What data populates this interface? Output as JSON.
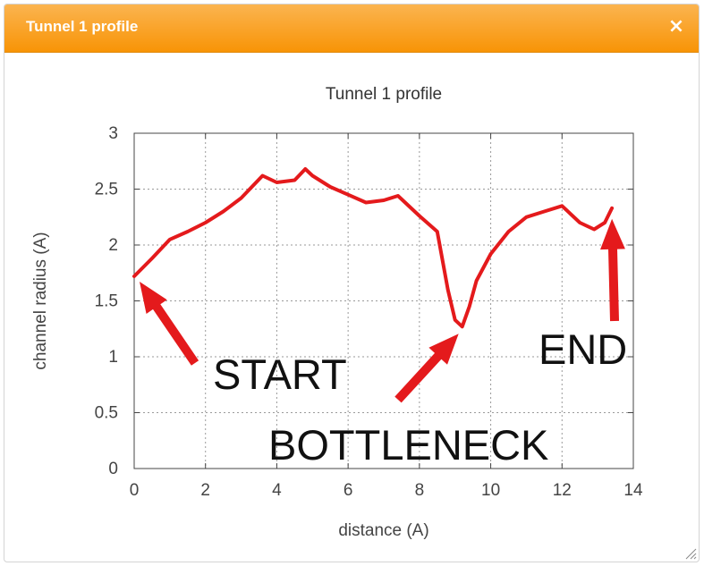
{
  "dialog": {
    "title": "Tunnel 1 profile",
    "close_glyph": "×",
    "close_icon": "close-icon",
    "resize_icon": "resize-grip-icon"
  },
  "chart_data": {
    "type": "line",
    "title": "Tunnel 1 profile",
    "xlabel": "distance (A)",
    "ylabel": "channel radius (A)",
    "xlim": [
      0,
      14
    ],
    "ylim": [
      0,
      3
    ],
    "xticks": [
      0,
      2,
      4,
      6,
      8,
      10,
      12,
      14
    ],
    "yticks": [
      "0",
      "0.5",
      "1",
      "1.5",
      "2",
      "2.5",
      "3"
    ],
    "grid": true,
    "series": [
      {
        "color": "#e41a1c",
        "x": [
          0,
          0.5,
          1.0,
          1.5,
          2.0,
          2.5,
          3.0,
          3.6,
          4.0,
          4.5,
          4.8,
          5.0,
          5.5,
          6.0,
          6.5,
          7.0,
          7.4,
          8.0,
          8.5,
          8.8,
          9.0,
          9.2,
          9.4,
          9.6,
          10.0,
          10.5,
          11.0,
          11.5,
          12.0,
          12.5,
          12.9,
          13.2,
          13.4
        ],
        "y": [
          1.72,
          1.88,
          2.05,
          2.12,
          2.2,
          2.3,
          2.42,
          2.62,
          2.56,
          2.58,
          2.68,
          2.62,
          2.52,
          2.45,
          2.38,
          2.4,
          2.44,
          2.26,
          2.12,
          1.6,
          1.33,
          1.27,
          1.45,
          1.68,
          1.92,
          2.12,
          2.25,
          2.3,
          2.35,
          2.2,
          2.14,
          2.2,
          2.33
        ]
      }
    ],
    "annotations": [
      {
        "text": "START",
        "target_x": 0,
        "target_y": 1.72
      },
      {
        "text": "BOTTLENECK",
        "target_x": 9.2,
        "target_y": 1.27
      },
      {
        "text": "END",
        "target_x": 13.4,
        "target_y": 2.33
      }
    ]
  }
}
